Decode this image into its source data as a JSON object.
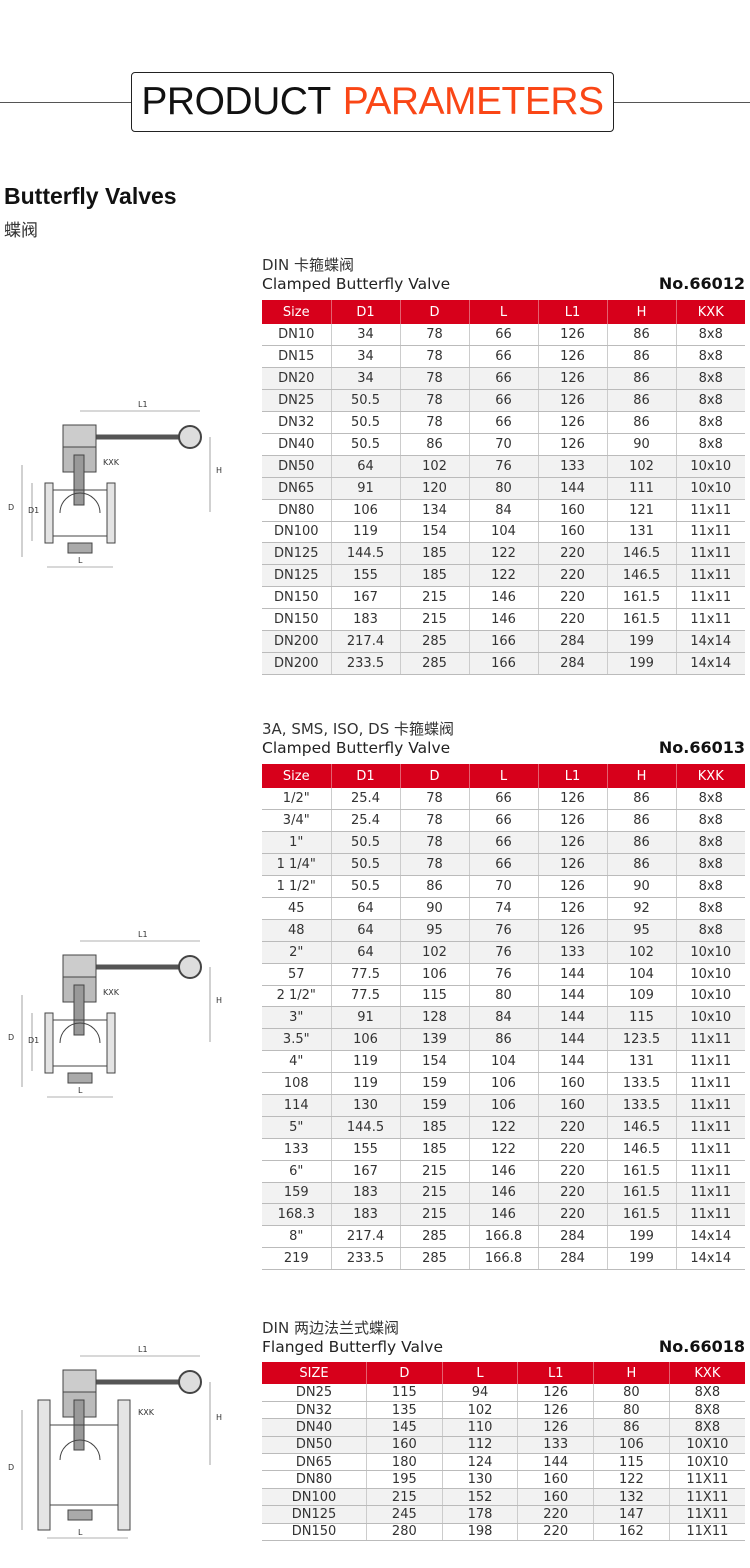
{
  "header": {
    "title_part1": "PRODUCT",
    "title_part2": "PARAMETERS",
    "accent_color": "#fa4616"
  },
  "page": {
    "title": "Butterfly Valves",
    "subtitle": "蝶阀"
  },
  "header_color": "#d7001b",
  "sections": [
    {
      "cn_title": "DIN 卡箍蝶阀",
      "en_title": "Clamped Butterfly Valve",
      "model_no": "No.66012",
      "drawing_labels": {
        "l1": "L1",
        "kxk": "KXK",
        "h": "H",
        "d": "D",
        "d1": "D1",
        "l": "L"
      },
      "columns": [
        "Size",
        "D1",
        "D",
        "L",
        "L1",
        "H",
        "KXK"
      ],
      "rows": [
        [
          "DN10",
          "34",
          "78",
          "66",
          "126",
          "86",
          "8x8"
        ],
        [
          "DN15",
          "34",
          "78",
          "66",
          "126",
          "86",
          "8x8"
        ],
        [
          "DN20",
          "34",
          "78",
          "66",
          "126",
          "86",
          "8x8"
        ],
        [
          "DN25",
          "50.5",
          "78",
          "66",
          "126",
          "86",
          "8x8"
        ],
        [
          "DN32",
          "50.5",
          "78",
          "66",
          "126",
          "86",
          "8x8"
        ],
        [
          "DN40",
          "50.5",
          "86",
          "70",
          "126",
          "90",
          "8x8"
        ],
        [
          "DN50",
          "64",
          "102",
          "76",
          "133",
          "102",
          "10x10"
        ],
        [
          "DN65",
          "91",
          "120",
          "80",
          "144",
          "111",
          "10x10"
        ],
        [
          "DN80",
          "106",
          "134",
          "84",
          "160",
          "121",
          "11x11"
        ],
        [
          "DN100",
          "119",
          "154",
          "104",
          "160",
          "131",
          "11x11"
        ],
        [
          "DN125",
          "144.5",
          "185",
          "122",
          "220",
          "146.5",
          "11x11"
        ],
        [
          "DN125",
          "155",
          "185",
          "122",
          "220",
          "146.5",
          "11x11"
        ],
        [
          "DN150",
          "167",
          "215",
          "146",
          "220",
          "161.5",
          "11x11"
        ],
        [
          "DN150",
          "183",
          "215",
          "146",
          "220",
          "161.5",
          "11x11"
        ],
        [
          "DN200",
          "217.4",
          "285",
          "166",
          "284",
          "199",
          "14x14"
        ],
        [
          "DN200",
          "233.5",
          "285",
          "166",
          "284",
          "199",
          "14x14"
        ]
      ]
    },
    {
      "cn_title": "3A, SMS, ISO, DS 卡箍蝶阀",
      "en_title": "Clamped Butterfly Valve",
      "model_no": "No.66013",
      "drawing_labels": {
        "l1": "L1",
        "kxk": "KXK",
        "h": "H",
        "d": "D",
        "d1": "D1",
        "l": "L"
      },
      "columns": [
        "Size",
        "D1",
        "D",
        "L",
        "L1",
        "H",
        "KXK"
      ],
      "rows": [
        [
          "1/2\"",
          "25.4",
          "78",
          "66",
          "126",
          "86",
          "8x8"
        ],
        [
          "3/4\"",
          "25.4",
          "78",
          "66",
          "126",
          "86",
          "8x8"
        ],
        [
          "1\"",
          "50.5",
          "78",
          "66",
          "126",
          "86",
          "8x8"
        ],
        [
          "1 1/4\"",
          "50.5",
          "78",
          "66",
          "126",
          "86",
          "8x8"
        ],
        [
          "1 1/2\"",
          "50.5",
          "86",
          "70",
          "126",
          "90",
          "8x8"
        ],
        [
          "45",
          "64",
          "90",
          "74",
          "126",
          "92",
          "8x8"
        ],
        [
          "48",
          "64",
          "95",
          "76",
          "126",
          "95",
          "8x8"
        ],
        [
          "2\"",
          "64",
          "102",
          "76",
          "133",
          "102",
          "10x10"
        ],
        [
          "57",
          "77.5",
          "106",
          "76",
          "144",
          "104",
          "10x10"
        ],
        [
          "2 1/2\"",
          "77.5",
          "115",
          "80",
          "144",
          "109",
          "10x10"
        ],
        [
          "3\"",
          "91",
          "128",
          "84",
          "144",
          "115",
          "10x10"
        ],
        [
          "3.5\"",
          "106",
          "139",
          "86",
          "144",
          "123.5",
          "11x11"
        ],
        [
          "4\"",
          "119",
          "154",
          "104",
          "144",
          "131",
          "11x11"
        ],
        [
          "108",
          "119",
          "159",
          "106",
          "160",
          "133.5",
          "11x11"
        ],
        [
          "114",
          "130",
          "159",
          "106",
          "160",
          "133.5",
          "11x11"
        ],
        [
          "5\"",
          "144.5",
          "185",
          "122",
          "220",
          "146.5",
          "11x11"
        ],
        [
          "133",
          "155",
          "185",
          "122",
          "220",
          "146.5",
          "11x11"
        ],
        [
          "6\"",
          "167",
          "215",
          "146",
          "220",
          "161.5",
          "11x11"
        ],
        [
          "159",
          "183",
          "215",
          "146",
          "220",
          "161.5",
          "11x11"
        ],
        [
          "168.3",
          "183",
          "215",
          "146",
          "220",
          "161.5",
          "11x11"
        ],
        [
          "8\"",
          "217.4",
          "285",
          "166.8",
          "284",
          "199",
          "14x14"
        ],
        [
          "219",
          "233.5",
          "285",
          "166.8",
          "284",
          "199",
          "14x14"
        ]
      ]
    },
    {
      "cn_title": "DIN 两边法兰式蝶阀",
      "en_title": "Flanged Butterfly Valve",
      "model_no": "No.66018",
      "drawing_labels": {
        "l1": "L1",
        "kxk": "KXK",
        "h": "H",
        "d": "D",
        "l": "L"
      },
      "columns": [
        "SIZE",
        "D",
        "L",
        "L1",
        "H",
        "KXK"
      ],
      "rows": [
        [
          "DN25",
          "115",
          "94",
          "126",
          "80",
          "8X8"
        ],
        [
          "DN32",
          "135",
          "102",
          "126",
          "80",
          "8X8"
        ],
        [
          "DN40",
          "145",
          "110",
          "126",
          "86",
          "8X8"
        ],
        [
          "DN50",
          "160",
          "112",
          "133",
          "106",
          "10X10"
        ],
        [
          "DN65",
          "180",
          "124",
          "144",
          "115",
          "10X10"
        ],
        [
          "DN80",
          "195",
          "130",
          "160",
          "122",
          "11X11"
        ],
        [
          "DN100",
          "215",
          "152",
          "160",
          "132",
          "11X11"
        ],
        [
          "DN125",
          "245",
          "178",
          "220",
          "147",
          "11X11"
        ],
        [
          "DN150",
          "280",
          "198",
          "220",
          "162",
          "11X11"
        ]
      ]
    }
  ]
}
